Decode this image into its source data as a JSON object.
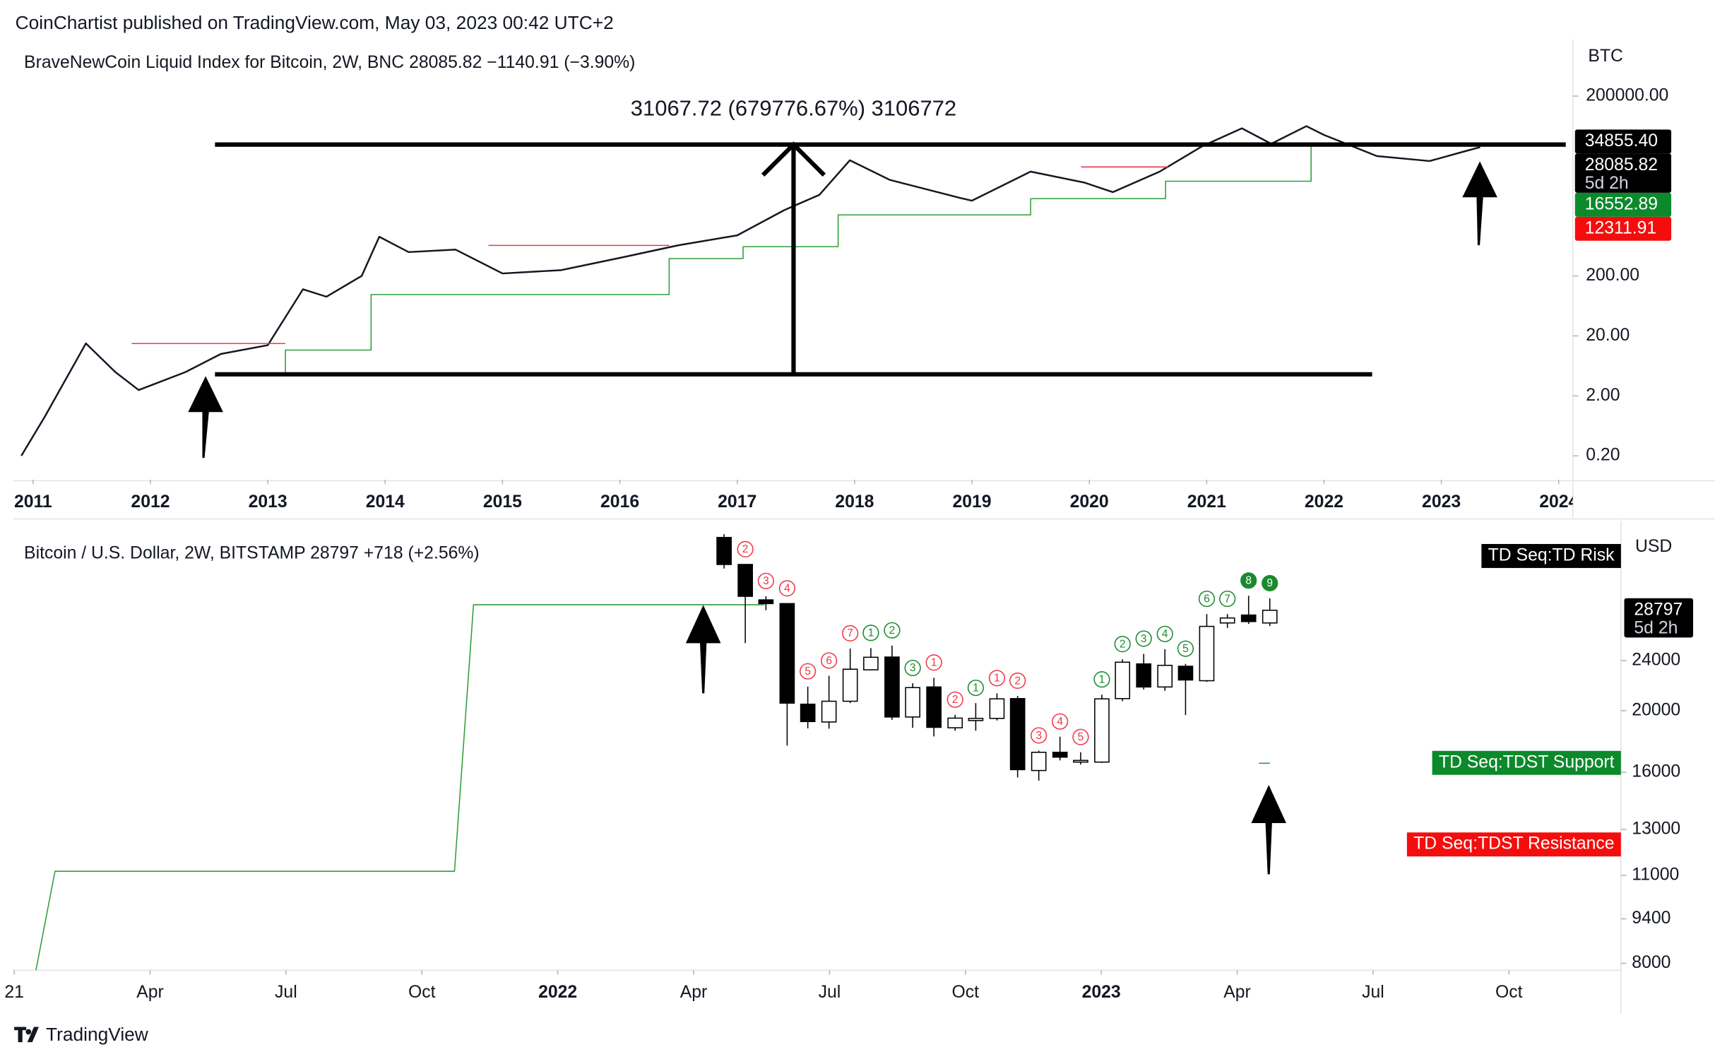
{
  "header": {
    "text": "CoinChartist published on TradingView.com, May 03, 2023 00:42 UTC+2"
  },
  "footer": {
    "brand": "TradingView"
  },
  "chart_data": [
    {
      "type": "line",
      "title": "BraveNewCoin Liquid Index for Bitcoin, 2W, BNC  28085.82  −1140.91 (−3.90%)",
      "unit": "BTC",
      "log": true,
      "xlim": [
        2010.83,
        2024.12
      ],
      "ylim": [
        0.08,
        1500000
      ],
      "xticks": [
        2011,
        2012,
        2013,
        2014,
        2015,
        2016,
        2017,
        2018,
        2019,
        2020,
        2021,
        2022,
        2023,
        2024
      ],
      "yticks": [
        {
          "value": 0.2,
          "label": "0.20"
        },
        {
          "value": 2,
          "label": "2.00"
        },
        {
          "value": 20,
          "label": "20.00"
        },
        {
          "value": 200,
          "label": "200.00"
        },
        {
          "value": 200000,
          "label": "200000.00"
        }
      ],
      "series": [
        {
          "color": "#131722",
          "width": 1.6,
          "x": [
            2010.9,
            2011.1,
            2011.45,
            2011.7,
            2011.9,
            2012.3,
            2012.6,
            2013.0,
            2013.3,
            2013.5,
            2013.8,
            2013.95,
            2014.2,
            2014.6,
            2015.0,
            2015.5,
            2016.0,
            2016.5,
            2017.0,
            2017.4,
            2017.7,
            2017.96,
            2018.3,
            2018.9,
            2019.0,
            2019.5,
            2019.96,
            2020.2,
            2020.6,
            2020.96,
            2021.3,
            2021.55,
            2021.85,
            2022.0,
            2022.45,
            2022.9,
            2023.2,
            2023.33
          ],
          "values": [
            0.2,
            0.9,
            15,
            5,
            2.5,
            5,
            10,
            14,
            120,
            90,
            200,
            900,
            500,
            550,
            220,
            250,
            400,
            650,
            950,
            2500,
            4500,
            17000,
            8000,
            4000,
            3600,
            11000,
            7200,
            5000,
            11000,
            29000,
            58000,
            32000,
            63000,
            45000,
            20000,
            16500,
            24000,
            28085.82
          ]
        },
        {
          "color": "#2e9e3a",
          "width": 1,
          "x": [
            2012.56,
            2013.15,
            2013.15,
            2013.88,
            2013.88,
            2016.42,
            2016.42,
            2017.05,
            2017.05,
            2017.86,
            2017.86,
            2019.5,
            2019.5,
            2020.65,
            2020.65,
            2021.89,
            2021.89,
            2023.34
          ],
          "values": [
            4.6,
            4.6,
            11.6,
            11.6,
            98,
            98,
            390,
            390,
            616,
            616,
            2090,
            2090,
            3900,
            3900,
            7600,
            7600,
            33000,
            33000
          ]
        },
        {
          "color": "#f23645",
          "width": 1,
          "x": [
            2011.84,
            2013.15,
            2014.0,
            2014.88,
            2016.42,
            2018.0,
            2019.93,
            2020.67
          ],
          "values": [
            14.9,
            14.9,
            null,
            645,
            645,
            null,
            13150,
            13150
          ]
        }
      ],
      "measure": {
        "label": "31067.72 (679776.67%) 3106772",
        "low": 4.57,
        "high": 31072.29,
        "x0": 2012.55,
        "x1_low": 2022.41,
        "x1_high": 2024.06,
        "x_mid": 2017.48
      },
      "price_labels": [
        {
          "value": 34855.4,
          "label": "34855.40",
          "color": "#000000"
        },
        {
          "value": 28085.82,
          "label": "28085.82",
          "sub": "5d 2h",
          "color": "#000000"
        },
        {
          "value": 16552.89,
          "label": "16552.89",
          "color": "#0c8a2b"
        },
        {
          "value": 12311.91,
          "label": "12311.91",
          "color": "#f50d0d"
        }
      ]
    },
    {
      "type": "candlestick",
      "title": "Bitcoin / U.S. Dollar, 2W, BITSTAMP  28797  +718 (+2.56%)",
      "unit": "USD",
      "log": true,
      "xlim": [
        2020.998,
        2023.956
      ],
      "ylim": [
        7800,
        37950
      ],
      "xticks": [
        {
          "value": 2021.0,
          "label": "21"
        },
        {
          "value": 2021.25,
          "label": "Apr"
        },
        {
          "value": 2021.5,
          "label": "Jul"
        },
        {
          "value": 2021.75,
          "label": "Oct"
        },
        2022,
        {
          "value": 2022.25,
          "label": "Apr"
        },
        {
          "value": 2022.5,
          "label": "Jul"
        },
        {
          "value": 2022.75,
          "label": "Oct"
        },
        2023,
        {
          "value": 2023.25,
          "label": "Apr"
        },
        {
          "value": 2023.5,
          "label": "Jul"
        },
        {
          "value": 2023.75,
          "label": "Oct"
        }
      ],
      "yticks": [
        24000,
        20000,
        16000,
        13000,
        11000,
        9400,
        8000
      ],
      "x": [
        2022.306,
        2022.345,
        2022.383,
        2022.422,
        2022.46,
        2022.499,
        2022.538,
        2022.576,
        2022.615,
        2022.653,
        2022.692,
        2022.731,
        2022.769,
        2022.808,
        2022.846,
        2022.885,
        2022.924,
        2022.962,
        2023.001,
        2023.039,
        2023.078,
        2023.117,
        2023.155,
        2023.194,
        2023.232,
        2023.271,
        2023.31
      ],
      "open": [
        37500,
        34000,
        29900,
        29500,
        20480,
        19200,
        20700,
        23200,
        24300,
        19550,
        21800,
        18800,
        19300,
        19450,
        20900,
        16100,
        17200,
        16600,
        16600,
        20900,
        23700,
        21800,
        23500,
        22300,
        27500,
        28300,
        27500
      ],
      "high": [
        37950,
        34000,
        30300,
        29500,
        21830,
        22700,
        25060,
        25100,
        25330,
        22100,
        22540,
        19700,
        20560,
        21300,
        21100,
        17300,
        18200,
        17200,
        21200,
        24100,
        24580,
        25000,
        23700,
        28400,
        28400,
        30350,
        30060
      ],
      "low": [
        33500,
        25560,
        28800,
        17620,
        18760,
        18740,
        20560,
        23150,
        19350,
        18800,
        18220,
        18600,
        18600,
        19300,
        15700,
        15520,
        16700,
        16450,
        16550,
        20700,
        21600,
        21500,
        19690,
        22200,
        27000,
        27400,
        27200
      ],
      "close": [
        34000,
        30290,
        29500,
        20560,
        19230,
        20700,
        23250,
        24280,
        19550,
        21750,
        18830,
        19470,
        19450,
        20880,
        16150,
        17200,
        16900,
        16700,
        20880,
        23850,
        21800,
        23580,
        22360,
        27160,
        28000,
        27640,
        28797
      ],
      "td_labels": [
        null,
        "2",
        "3",
        "4",
        "5",
        "6",
        "7",
        "1",
        "2",
        "3",
        "1",
        "2",
        "1",
        "1",
        "2",
        "3",
        "4",
        "5",
        "1",
        "2",
        "3",
        "4",
        "5",
        "6",
        "7",
        "8",
        "9"
      ],
      "td_colors": [
        null,
        "#f23645",
        "#f23645",
        "#f23645",
        "#f23645",
        "#f23645",
        "#f23645",
        "#1b8a2f",
        "#1b8a2f",
        "#1b8a2f",
        "#f23645",
        "#f23645",
        "#1b8a2f",
        "#f23645",
        "#f23645",
        "#f23645",
        "#f23645",
        "#f23645",
        "#1b8a2f",
        "#1b8a2f",
        "#1b8a2f",
        "#1b8a2f",
        "#1b8a2f",
        "#1b8a2f",
        "#1b8a2f",
        "#1b8a2f",
        "#1b8a2f"
      ],
      "td_filled": [
        false,
        false,
        false,
        false,
        false,
        false,
        false,
        false,
        false,
        false,
        false,
        false,
        false,
        false,
        false,
        false,
        false,
        false,
        false,
        false,
        false,
        false,
        false,
        false,
        false,
        true,
        true
      ],
      "series": [
        {
          "color": "#2e9e3a",
          "width": 1,
          "x": [
            2021.04,
            2021.075,
            2021.81,
            2021.845,
            2022.38,
            2022.9,
            2023.29,
            2023.31
          ],
          "values": [
            7800,
            11170,
            11170,
            29380,
            29380,
            null,
            16530,
            16530
          ]
        }
      ],
      "price_labels": [
        {
          "value": 28797,
          "label": "28797",
          "sub": "5d 2h",
          "color": "#000000"
        }
      ],
      "labels": [
        {
          "text": "TD Seq:TD Risk",
          "color": "#000000"
        },
        {
          "text": "TD Seq:TDST Support",
          "value": 16552.89,
          "color": "#0c8a2b"
        },
        {
          "text": "TD Seq:TDST Resistance",
          "value": 12311.91,
          "color": "#f50d0d"
        }
      ]
    }
  ]
}
